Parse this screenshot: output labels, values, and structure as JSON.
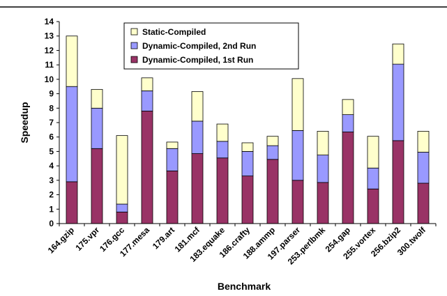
{
  "chart_data": {
    "type": "bar",
    "stacked": true,
    "title": "",
    "xlabel": "Benchmark",
    "ylabel": "Speedup",
    "ylim": [
      0,
      14
    ],
    "yticks": [
      0,
      1,
      2,
      3,
      4,
      5,
      6,
      7,
      8,
      9,
      10,
      11,
      12,
      13,
      14
    ],
    "grid": false,
    "legend_position": "top-left",
    "categories": [
      "164.gzip",
      "175.vpr",
      "176.gcc",
      "177.mesa",
      "179.art",
      "181.mcf",
      "183.equake",
      "186.crafty",
      "188.ammp",
      "197.parser",
      "253.perlbmk",
      "254.gap",
      "255.vortex",
      "256.bzip2",
      "300.twolf"
    ],
    "series": [
      {
        "name": "Dynamic-Compiled, 1st Run",
        "color": "#993366",
        "values": [
          2.9,
          5.2,
          0.8,
          7.8,
          3.65,
          4.85,
          4.55,
          3.3,
          4.45,
          3.0,
          2.85,
          6.35,
          2.4,
          5.75,
          2.8
        ]
      },
      {
        "name": "Dynamic-Compiled, 2nd Run",
        "color": "#9999FF",
        "values": [
          6.6,
          2.8,
          0.55,
          1.4,
          1.55,
          2.25,
          1.15,
          1.7,
          0.95,
          3.45,
          1.9,
          1.2,
          1.45,
          5.3,
          2.15
        ]
      },
      {
        "name": "Static-Compiled",
        "color": "#FFFFCC",
        "values": [
          3.5,
          1.3,
          4.75,
          0.9,
          0.45,
          2.05,
          1.2,
          0.6,
          0.65,
          3.6,
          1.65,
          1.05,
          2.2,
          1.4,
          1.45
        ]
      }
    ]
  }
}
